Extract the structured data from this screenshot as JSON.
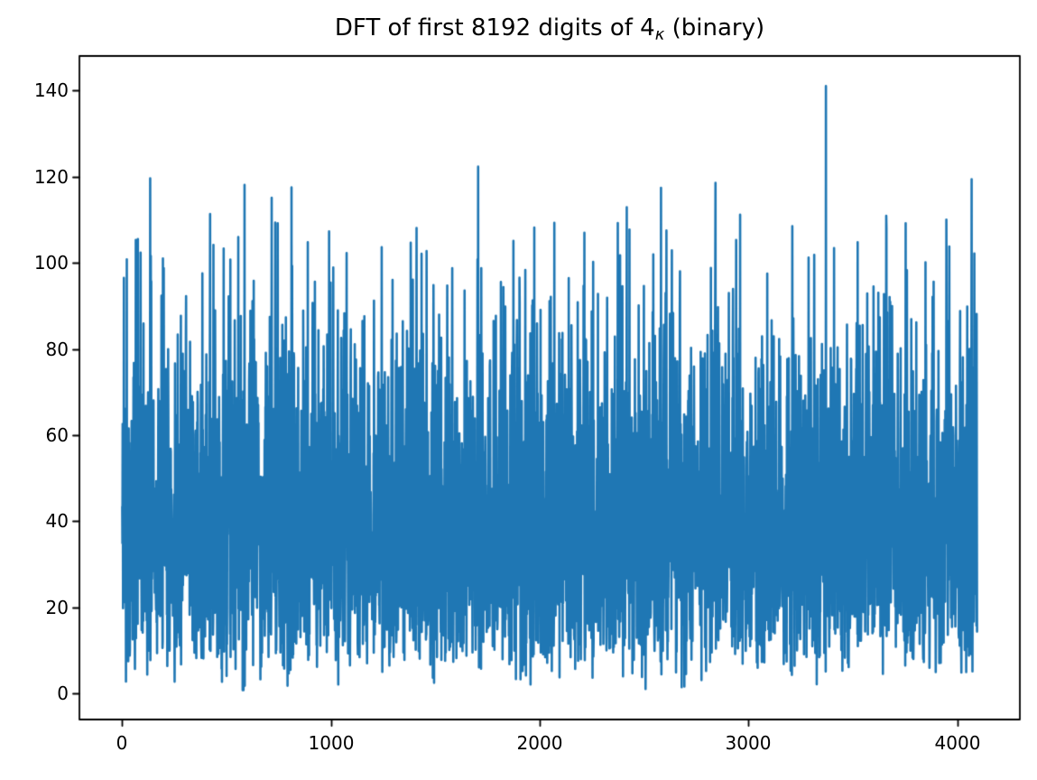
{
  "figure": {
    "background_color": "#ffffff",
    "axes_background_color": "#ffffff",
    "spine_color": "#000000"
  },
  "chart_data": {
    "type": "line",
    "title": "DFT of first 8192 digits of 4κ (binary)",
    "title_parts": {
      "prefix": "DFT of first 8192 digits of 4",
      "subscript": "κ",
      "suffix": " (binary)"
    },
    "xlabel": "",
    "ylabel": "",
    "legend": null,
    "grid": false,
    "xlim": [
      -205,
      4300
    ],
    "ylim": [
      -6,
      148
    ],
    "x_ticks": [
      0,
      1000,
      2000,
      3000,
      4000
    ],
    "y_ticks": [
      0,
      20,
      40,
      60,
      80,
      100,
      120,
      140
    ],
    "x_tick_labels": [
      "0",
      "1000",
      "2000",
      "3000",
      "4000"
    ],
    "y_tick_labels": [
      "0",
      "20",
      "40",
      "60",
      "80",
      "100",
      "120",
      "140"
    ],
    "line_color": "#1f77b4",
    "line_width": 2.6,
    "series_description": "Noise-like DFT magnitude spectrum of 8192 binary digits: 4096 frequency bins, Rayleigh-distributed magnitudes forming a dense band roughly between 10 and 65 with spikes up to ~141",
    "n_points": 4096,
    "x_start": 0,
    "x_step": 1,
    "value_distribution": {
      "type": "rayleigh",
      "sigma": 32,
      "min_clip": 0.8,
      "soft_cap": 122,
      "seed": 42
    },
    "value_range_observed": [
      1,
      141
    ],
    "notable_peaks": [
      {
        "x": 8,
        "y": 96.5
      },
      {
        "x": 22,
        "y": 100.8
      },
      {
        "x": 65,
        "y": 105.3
      },
      {
        "x": 134,
        "y": 119.6
      },
      {
        "x": 195,
        "y": 101.0
      },
      {
        "x": 421,
        "y": 111.3
      },
      {
        "x": 486,
        "y": 103.3
      },
      {
        "x": 586,
        "y": 118.1
      },
      {
        "x": 716,
        "y": 115.1
      },
      {
        "x": 811,
        "y": 117.5
      },
      {
        "x": 889,
        "y": 104.8
      },
      {
        "x": 1011,
        "y": 98.9
      },
      {
        "x": 1206,
        "y": 91.2
      },
      {
        "x": 1410,
        "y": 108.1
      },
      {
        "x": 1705,
        "y": 122.3
      },
      {
        "x": 1874,
        "y": 105.1
      },
      {
        "x": 1974,
        "y": 108.2
      },
      {
        "x": 2070,
        "y": 109.3
      },
      {
        "x": 2256,
        "y": 100.2
      },
      {
        "x": 2417,
        "y": 112.9
      },
      {
        "x": 2581,
        "y": 117.4
      },
      {
        "x": 2633,
        "y": 102.9
      },
      {
        "x": 2820,
        "y": 98.8
      },
      {
        "x": 2841,
        "y": 100.9
      },
      {
        "x": 2941,
        "y": 105.3
      },
      {
        "x": 3210,
        "y": 108.5
      },
      {
        "x": 3288,
        "y": 101.2
      },
      {
        "x": 3371,
        "y": 141.0
      },
      {
        "x": 3410,
        "y": 103.4
      },
      {
        "x": 3753,
        "y": 109.2
      },
      {
        "x": 3848,
        "y": 100.1
      },
      {
        "x": 3948,
        "y": 110.0
      },
      {
        "x": 4069,
        "y": 119.4
      }
    ]
  }
}
